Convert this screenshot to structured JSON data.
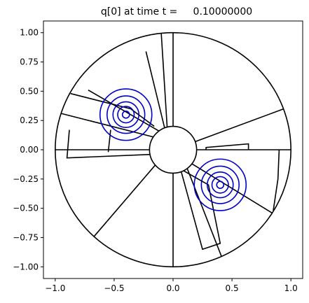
{
  "chart_data": {
    "type": "contour",
    "title": "q[0] at time t =     0.10000000",
    "xlabel": "",
    "ylabel": "",
    "xlim": [
      -1.1,
      1.1
    ],
    "ylim": [
      -1.1,
      1.1
    ],
    "xticks": [
      -1.0,
      -0.5,
      0.0,
      0.5,
      1.0
    ],
    "xtick_labels": [
      "−1.0",
      "−0.5",
      "0.0",
      "0.5",
      "1.0"
    ],
    "yticks": [
      1.0,
      0.75,
      0.5,
      0.25,
      0.0,
      -0.25,
      -0.5,
      -0.75,
      -1.0
    ],
    "ytick_labels": [
      "1.00",
      "0.75",
      "0.50",
      "0.25",
      "0.00",
      "−0.25",
      "−0.50",
      "−0.75",
      "−1.00"
    ],
    "grid": false,
    "boundary_color": "#000000",
    "contour_color": "#0000cc",
    "outer_circle": {
      "center": [
        0,
        0
      ],
      "radius": 1.0
    },
    "inner_circle": {
      "center": [
        0,
        0
      ],
      "radius": 0.2
    },
    "patch_edges": [
      {
        "points": [
          [
            0.0,
            1.0
          ],
          [
            0.0,
            0.2
          ]
        ]
      },
      {
        "points": [
          [
            -0.1,
            0.99
          ],
          [
            -0.05,
            0.19
          ]
        ]
      },
      {
        "points": [
          [
            -0.16,
            0.2
          ],
          [
            -0.36,
            0.35
          ],
          [
            -0.87,
            0.48
          ]
        ]
      },
      {
        "points": [
          [
            -0.23,
            0.84
          ],
          [
            -0.07,
            0.18
          ]
        ]
      },
      {
        "points": [
          [
            -0.72,
            0.51
          ],
          [
            -0.12,
            0.16
          ]
        ]
      },
      {
        "points": [
          [
            -0.95,
            0.31
          ],
          [
            -0.17,
            0.11
          ]
        ]
      },
      {
        "points": [
          [
            -1.0,
            0.0
          ],
          [
            -0.2,
            0.0
          ]
        ]
      },
      {
        "points": [
          [
            -0.88,
            0.17
          ],
          [
            -0.9,
            -0.07
          ],
          [
            -0.19,
            -0.04
          ]
        ]
      },
      {
        "points": [
          [
            -0.53,
            0.17
          ],
          [
            -0.55,
            -0.02
          ]
        ]
      },
      {
        "points": [
          [
            -0.67,
            -0.74
          ],
          [
            -0.15,
            -0.13
          ]
        ]
      },
      {
        "points": [
          [
            0.0,
            -1.0
          ],
          [
            0.0,
            -0.2
          ]
        ]
      },
      {
        "points": [
          [
            0.07,
            -0.19
          ],
          [
            0.25,
            -0.85
          ],
          [
            0.4,
            -0.8
          ],
          [
            0.3,
            -0.3
          ],
          [
            0.09,
            -0.18
          ]
        ]
      },
      {
        "points": [
          [
            0.12,
            -0.16
          ],
          [
            0.41,
            -0.91
          ]
        ]
      },
      {
        "points": [
          [
            0.16,
            -0.12
          ],
          [
            0.84,
            -0.54
          ]
        ]
      },
      {
        "points": [
          [
            0.85,
            -0.52
          ],
          [
            0.89,
            -0.25
          ],
          [
            0.9,
            0.0
          ]
        ]
      },
      {
        "points": [
          [
            0.2,
            0.0
          ],
          [
            1.0,
            0.0
          ]
        ]
      },
      {
        "points": [
          [
            0.28,
            0.0
          ],
          [
            0.28,
            0.02
          ],
          [
            0.64,
            0.05
          ],
          [
            0.64,
            0.0
          ]
        ]
      },
      {
        "points": [
          [
            0.19,
            0.07
          ],
          [
            0.94,
            0.35
          ]
        ]
      }
    ],
    "contour_centers": [
      [
        -0.4,
        0.3
      ],
      [
        0.4,
        -0.3
      ]
    ],
    "contour_radii": [
      0.22,
      0.16,
      0.11,
      0.07,
      0.03
    ]
  }
}
